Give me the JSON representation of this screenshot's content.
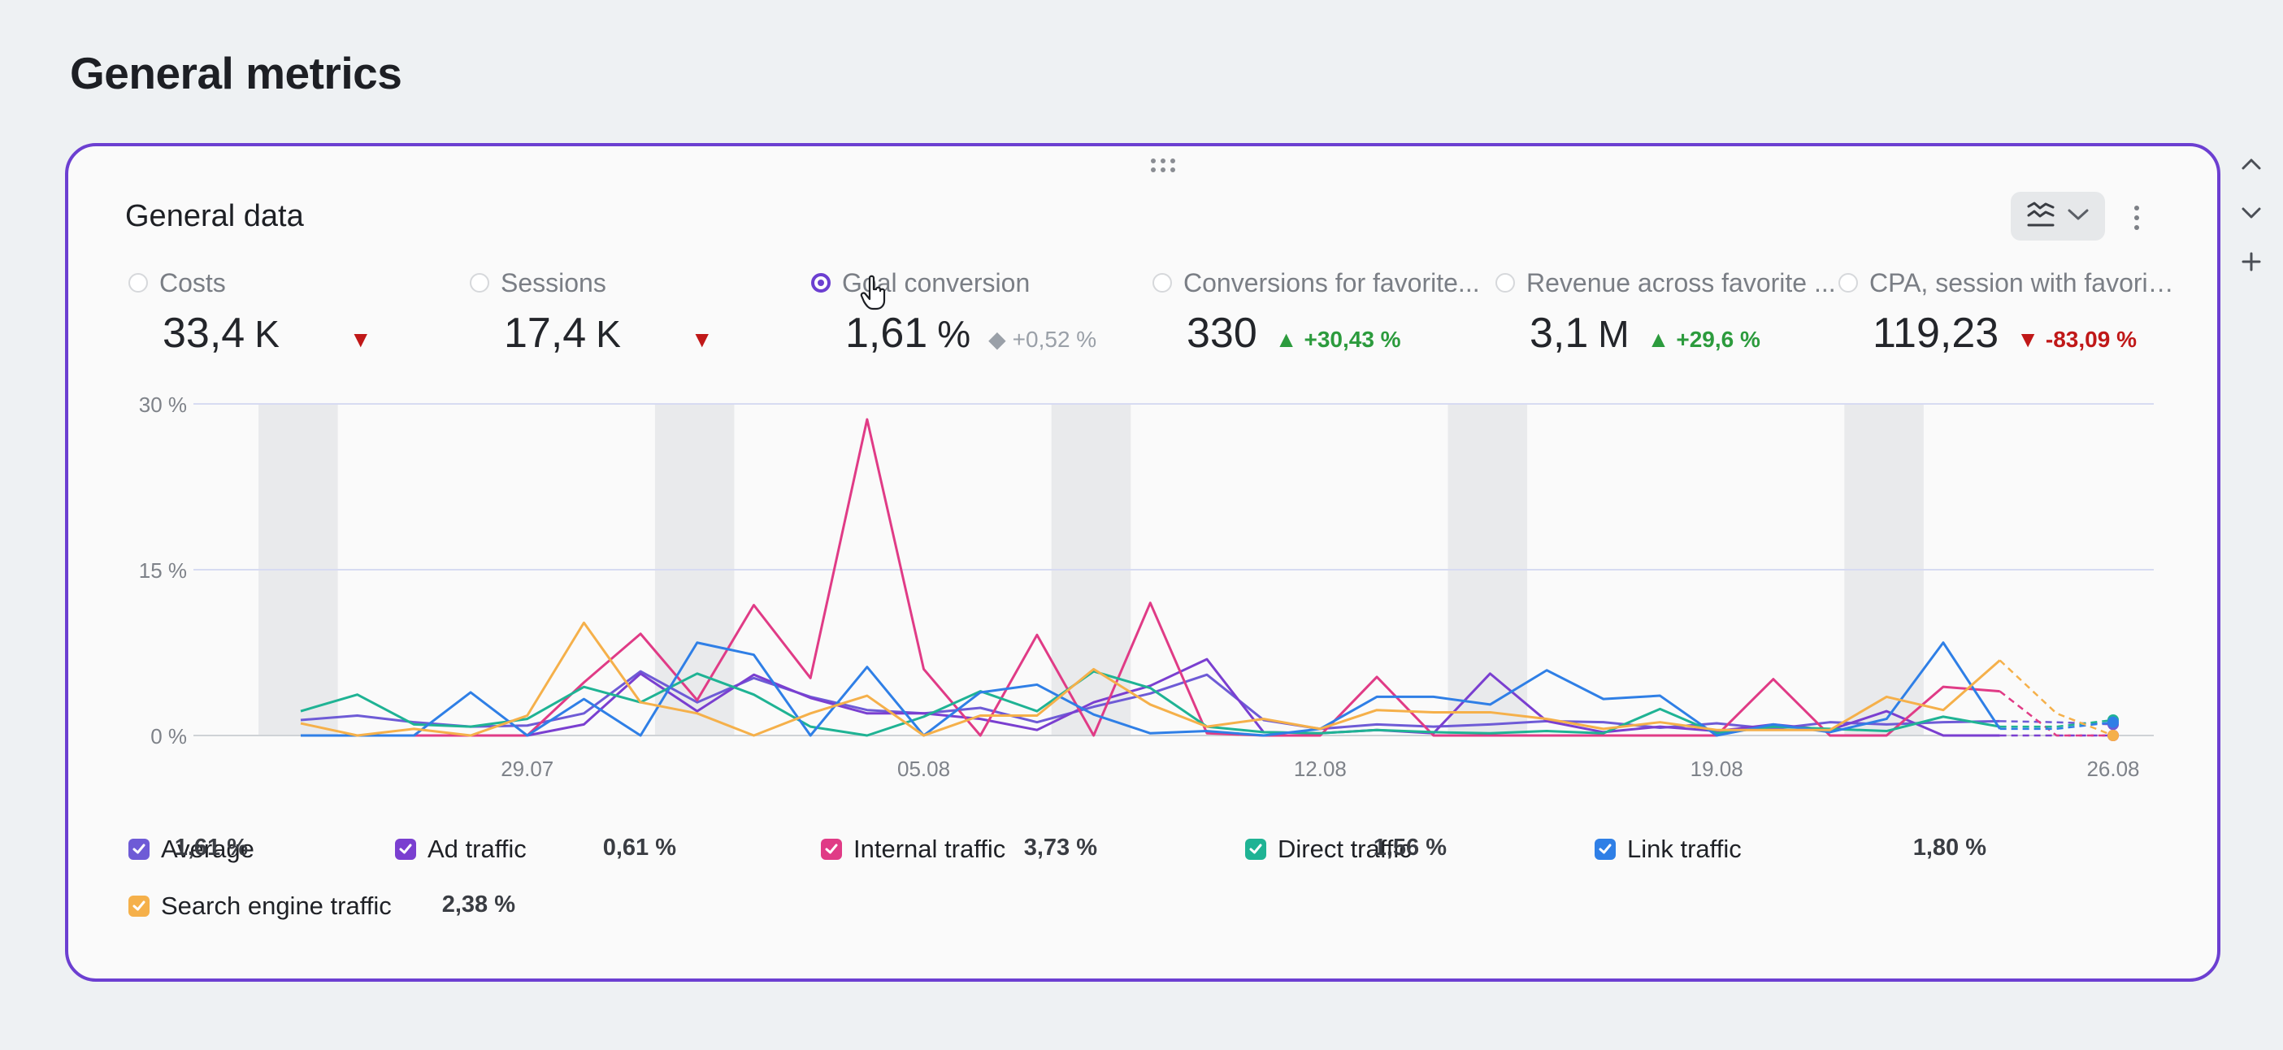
{
  "page": {
    "title": "General metrics"
  },
  "card": {
    "title": "General data",
    "chart_type_icon": "line-chart-icon",
    "menu_icon": "kebab-menu-icon"
  },
  "side_controls": [
    "chevron-up-icon",
    "chevron-down-icon",
    "plus-icon"
  ],
  "metrics": [
    {
      "label": "Costs",
      "value": "33,4",
      "unit": "K",
      "delta": "",
      "trend": "down",
      "selected": false
    },
    {
      "label": "Sessions",
      "value": "17,4",
      "unit": "K",
      "delta": "",
      "trend": "down",
      "selected": false
    },
    {
      "label": "Goal conversion",
      "value": "1,61",
      "unit": "%",
      "delta": "+0,52 %",
      "trend": "neutral",
      "selected": true
    },
    {
      "label": "Conversions for favorite...",
      "value": "330",
      "unit": "",
      "delta": "+30,43 %",
      "trend": "up",
      "selected": false
    },
    {
      "label": "Revenue across favorite ...",
      "value": "3,1",
      "unit": "M",
      "delta": "+29,6 %",
      "trend": "up",
      "selected": false
    },
    {
      "label": "CPA, session with favorite...",
      "value": "119,23",
      "unit": "",
      "delta": "-83,09 %",
      "trend": "down",
      "selected": false
    }
  ],
  "legend": [
    {
      "name": "Average",
      "value": "1,61 %",
      "color": "#6e5bd6"
    },
    {
      "name": "Ad traffic",
      "value": "0,61 %",
      "color": "#7a3fd0"
    },
    {
      "name": "Internal traffic",
      "value": "3,73 %",
      "color": "#e03b86"
    },
    {
      "name": "Direct traffic",
      "value": "1,56 %",
      "color": "#1fb394"
    },
    {
      "name": "Link traffic",
      "value": "1,80 %",
      "color": "#2f7fe6"
    },
    {
      "name": "Search engine traffic",
      "value": "2,38 %",
      "color": "#f5b04a"
    }
  ],
  "chart_data": {
    "type": "line",
    "x": [
      "25.07",
      "26.07",
      "27.07",
      "28.07",
      "29.07",
      "30.07",
      "31.07",
      "01.08",
      "02.08",
      "03.08",
      "04.08",
      "05.08",
      "06.08",
      "07.08",
      "08.08",
      "09.08",
      "10.08",
      "11.08",
      "12.08",
      "13.08",
      "14.08",
      "15.08",
      "16.08",
      "17.08",
      "18.08",
      "19.08",
      "20.08",
      "21.08",
      "22.08",
      "23.08",
      "24.08",
      "25.08",
      "26.08"
    ],
    "x_tick_labels": [
      "29.07",
      "05.08",
      "12.08",
      "19.08",
      "26.08"
    ],
    "y_tick_labels": [
      "0 %",
      "15 %",
      "30 %"
    ],
    "ylim": [
      0,
      30
    ],
    "weekend_shading": true,
    "series": [
      {
        "name": "Average",
        "color": "#6e5bd6",
        "values": [
          1.4,
          1.8,
          1.2,
          0.8,
          0.9,
          2.0,
          5.8,
          3.0,
          5.2,
          3.5,
          2.3,
          2.0,
          2.5,
          1.2,
          2.6,
          3.8,
          5.5,
          1.4,
          0.6,
          1.0,
          0.8,
          1.0,
          1.3,
          1.2,
          0.7,
          1.1,
          0.6,
          1.2,
          1.0,
          1.2,
          1.3,
          1.2,
          1.0
        ]
      },
      {
        "name": "Ad traffic",
        "color": "#7a3fd0",
        "values": [
          0,
          0,
          0,
          0,
          0,
          1.0,
          5.6,
          2.2,
          5.5,
          3.4,
          2.0,
          2.0,
          1.5,
          0.5,
          3.0,
          4.5,
          6.9,
          0.3,
          0.2,
          0.5,
          0.2,
          5.6,
          1.3,
          0.3,
          0.8,
          0.4,
          1.0,
          0.5,
          2.2,
          0,
          0,
          0,
          0
        ]
      },
      {
        "name": "Internal traffic",
        "color": "#e03b86",
        "values": [
          0,
          0,
          0,
          0,
          0,
          4.8,
          9.2,
          3.2,
          11.8,
          5.2,
          28.6,
          6.0,
          0,
          9.1,
          0,
          12.0,
          0.2,
          0,
          0,
          5.3,
          0,
          0,
          0,
          0,
          0,
          0,
          5.1,
          0,
          0,
          4.4,
          4.0,
          0,
          0
        ]
      },
      {
        "name": "Direct traffic",
        "color": "#1fb394",
        "values": [
          2.2,
          3.7,
          1.0,
          0.8,
          1.5,
          4.4,
          3.0,
          5.6,
          3.7,
          0.8,
          0,
          1.7,
          4.0,
          2.2,
          5.8,
          4.3,
          0.8,
          0.3,
          0.2,
          0.5,
          0.3,
          0.2,
          0.4,
          0.2,
          2.4,
          0.2,
          0.8,
          0.6,
          0.4,
          1.7,
          0.8,
          0.8,
          1.4
        ]
      },
      {
        "name": "Link traffic",
        "color": "#2f7fe6",
        "values": [
          0,
          0,
          0,
          3.9,
          0,
          3.3,
          0,
          8.4,
          7.3,
          0,
          6.2,
          0,
          3.9,
          4.6,
          1.9,
          0.2,
          0.4,
          0,
          0.6,
          3.5,
          3.5,
          2.8,
          5.9,
          3.3,
          3.6,
          0,
          1.0,
          0.3,
          1.5,
          8.4,
          0.6,
          0.6,
          1.2
        ]
      },
      {
        "name": "Search engine traffic",
        "color": "#f5b04a",
        "values": [
          1.1,
          0,
          0.6,
          0,
          1.8,
          10.2,
          3.0,
          2.0,
          0,
          2.0,
          3.6,
          0,
          1.8,
          1.8,
          6.0,
          2.8,
          0.8,
          1.5,
          0.6,
          2.3,
          2.1,
          2.1,
          1.5,
          0.6,
          1.2,
          0.5,
          0.5,
          0.5,
          3.5,
          2.3,
          6.8,
          2.0,
          0
        ]
      }
    ]
  }
}
